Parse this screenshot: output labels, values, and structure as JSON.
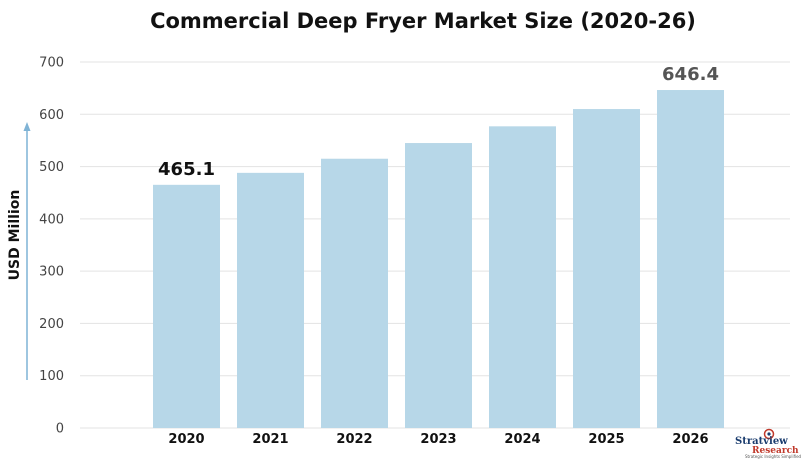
{
  "chart_data": {
    "type": "bar",
    "title": "Commercial Deep Fryer Market Size (2020-26)",
    "xlabel": "",
    "ylabel": "USD Million",
    "categories": [
      "2020",
      "2021",
      "2022",
      "2023",
      "2024",
      "2025",
      "2026"
    ],
    "values": [
      465.1,
      488,
      515,
      545,
      577,
      610,
      646.4
    ],
    "ylim": [
      0,
      700
    ],
    "yticks": [
      0,
      100,
      200,
      300,
      400,
      500,
      600,
      700
    ],
    "grid": true,
    "data_labels": [
      {
        "index": 0,
        "text": "465.1"
      },
      {
        "index": 6,
        "text": "646.4"
      }
    ]
  },
  "colors": {
    "bar": "#b7d7e8",
    "grid": "#e3e3e3",
    "axis_arrow": "#7fb3d5",
    "label_first": "#111111",
    "label_last": "#555555"
  },
  "logo": {
    "name": "Stratview",
    "sub": "Research",
    "tagline": "Strategic Insights Simplified"
  }
}
